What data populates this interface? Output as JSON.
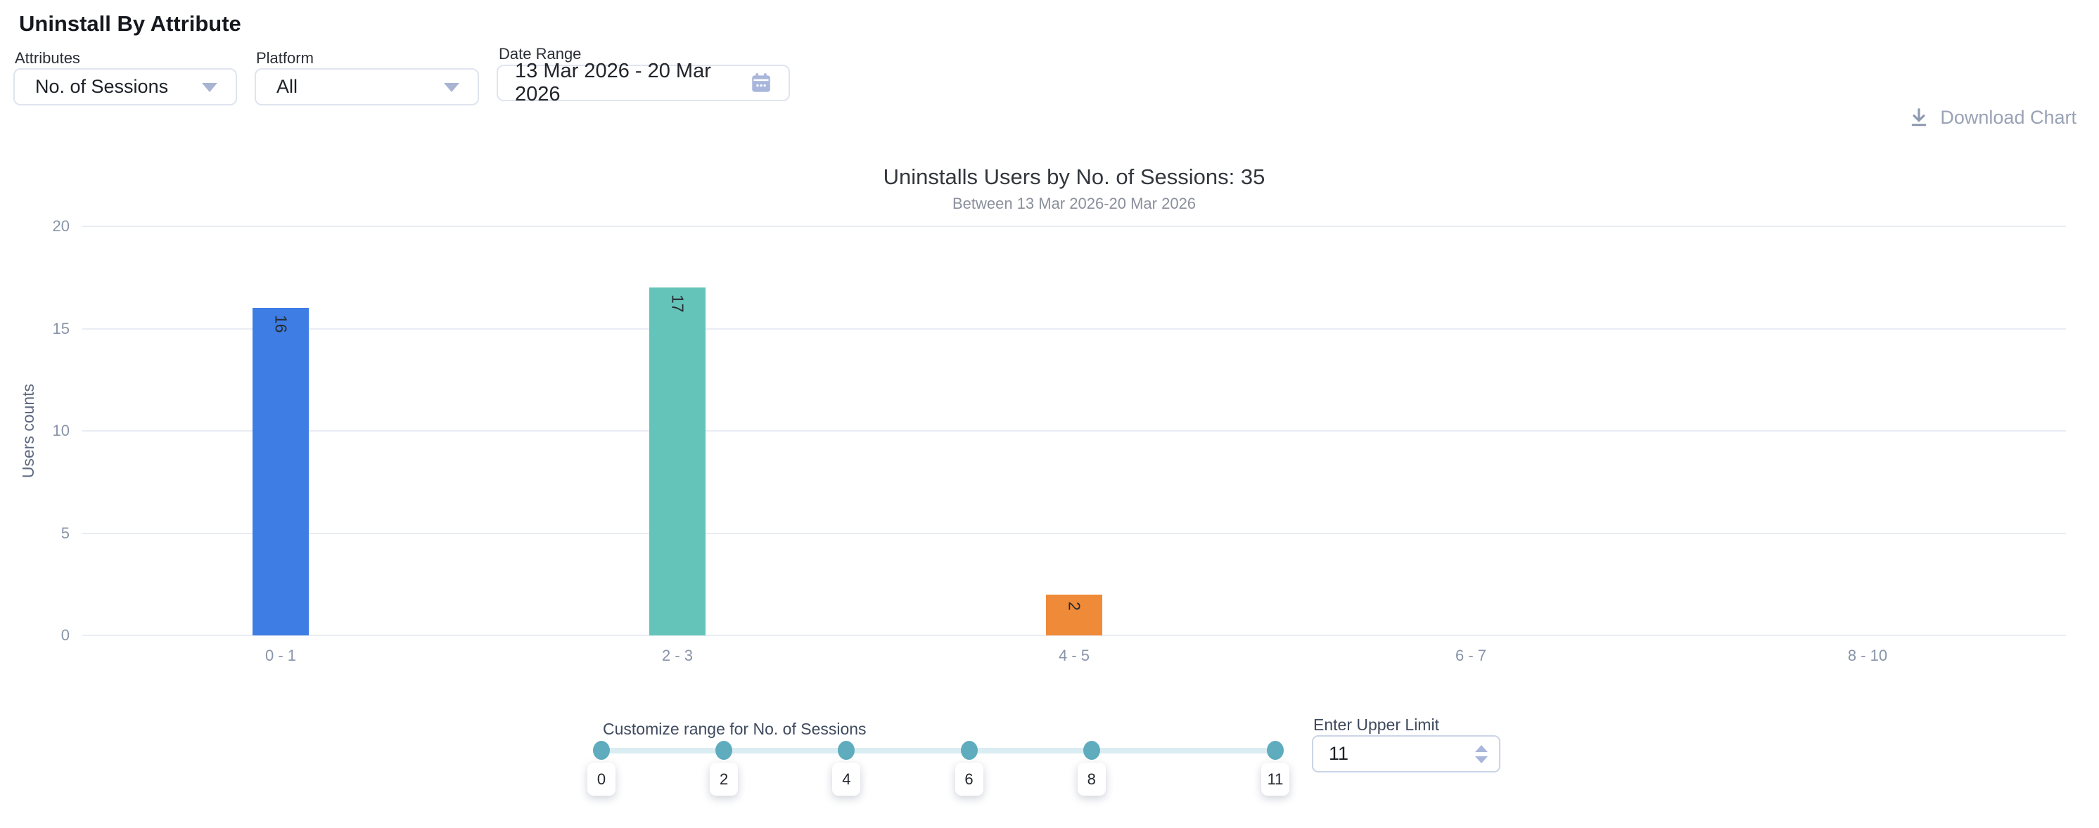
{
  "page": {
    "title": "Uninstall By Attribute"
  },
  "filters": {
    "attributes": {
      "label": "Attributes",
      "value": "No. of Sessions"
    },
    "platform": {
      "label": "Platform",
      "value": "All"
    },
    "date_range": {
      "label": "Date Range",
      "value": "13 Mar 2026 - 20 Mar 2026"
    }
  },
  "toolbar": {
    "download_label": "Download Chart"
  },
  "chart_data": {
    "type": "bar",
    "title": "Uninstalls Users by No. of Sessions: 35",
    "subtitle": "Between 13 Mar 2026-20 Mar 2026",
    "categories": [
      "0 - 1",
      "2 - 3",
      "4 - 5",
      "6 - 7",
      "8 - 10"
    ],
    "values": [
      16,
      17,
      2,
      0,
      0
    ],
    "bar_colors": [
      "#3D7DE4",
      "#64C4B9",
      "#EF8A38",
      "#3D7DE4",
      "#64C4B9"
    ],
    "ylabel": "Users counts",
    "xlabel": "",
    "ylim": [
      0,
      20
    ],
    "yticks": [
      0,
      5,
      10,
      15,
      20
    ],
    "grid": true,
    "legend_position": "none"
  },
  "range_slider": {
    "label": "Customize range for No. of Sessions",
    "min": 0,
    "max": 11,
    "handle_values": [
      0,
      2,
      4,
      6,
      8,
      11
    ]
  },
  "upper_limit": {
    "label": "Enter Upper Limit",
    "value": "11"
  },
  "icons": {
    "calendar": "calendar-icon",
    "download": "download-icon",
    "dropdown_caret": "chevron-down-icon",
    "spinner_up": "spinner-up-icon",
    "spinner_down": "spinner-down-icon"
  },
  "colors": {
    "bar_blue": "#3D7DE4",
    "bar_teal": "#64C4B9",
    "bar_orange": "#EF8A38",
    "slider_handle": "#5FACBE",
    "slider_track": "#DAEDF2",
    "muted_text": "#8894A9",
    "icon_accent": "#A9B6DC",
    "download_text": "#99A2B6"
  }
}
